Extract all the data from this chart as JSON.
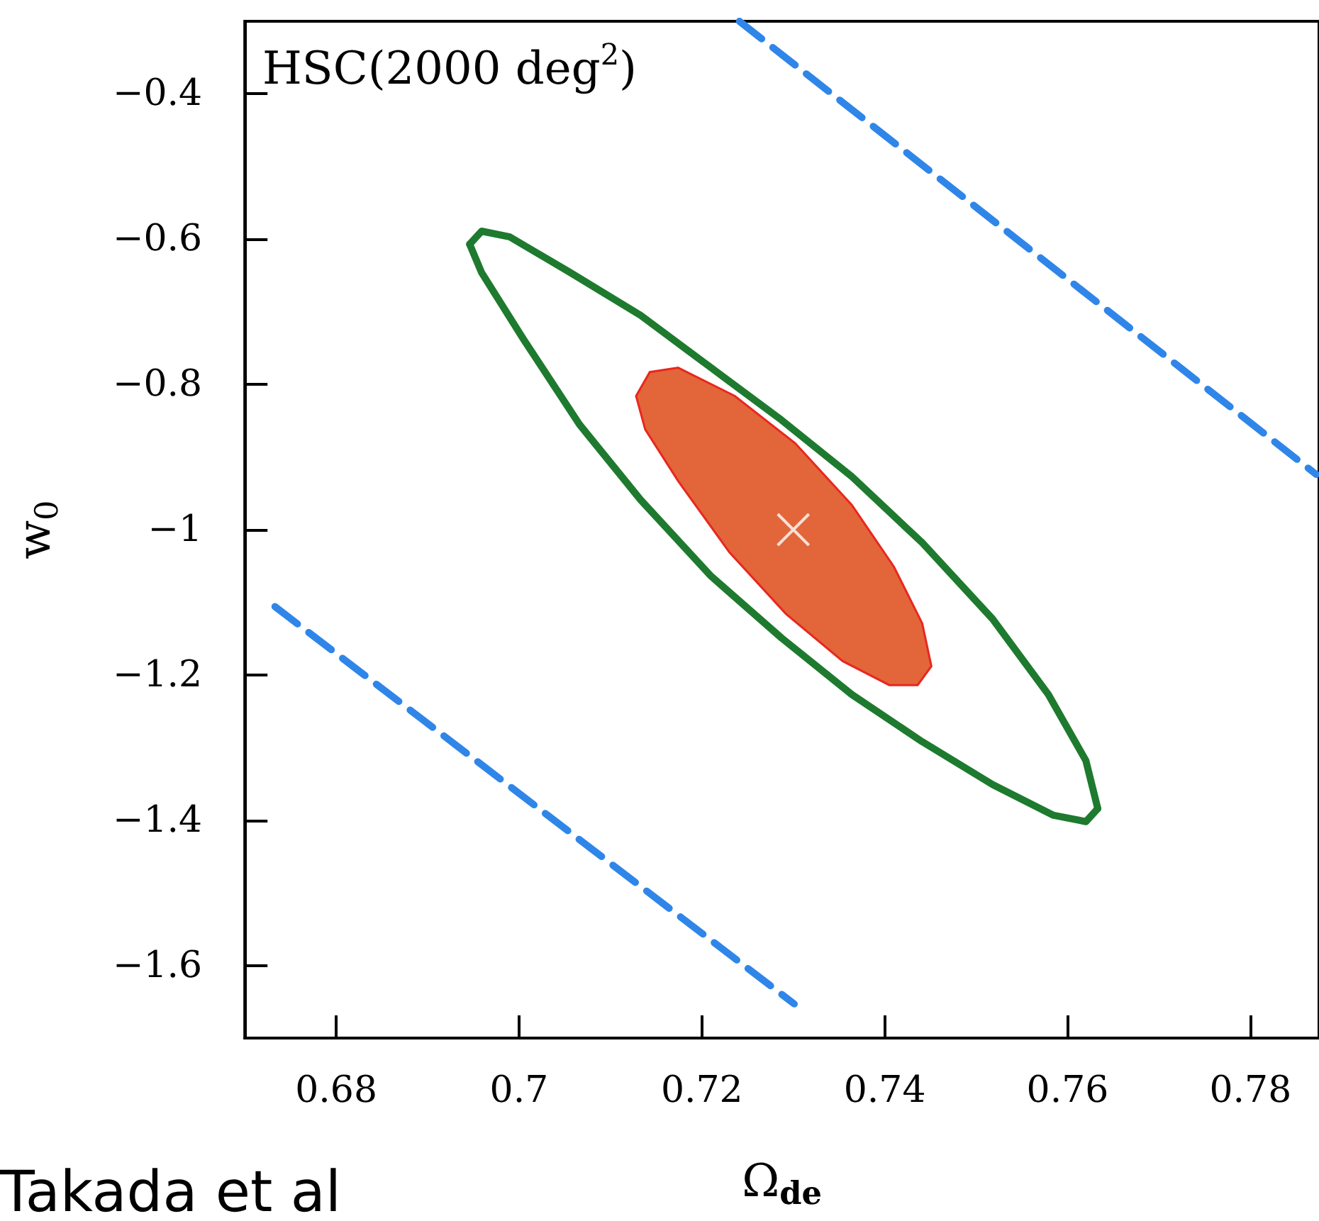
{
  "chart_data": {
    "type": "line",
    "xlabel": "Ω$_{de}$",
    "ylabel": "w$_{0}$",
    "xlim": [
      0.67,
      0.7875
    ],
    "ylim": [
      -1.7,
      -0.3
    ],
    "xticks": [
      0.68,
      0.7,
      0.72,
      0.74,
      0.76,
      0.78
    ],
    "yticks": [
      -1.6,
      -1.4,
      -1.2,
      -1,
      -0.8,
      -0.6,
      -0.4
    ],
    "grid": false,
    "annotations": [
      "HSC(2000 deg$^{2}$)",
      "Takada et al"
    ],
    "series": [
      {
        "color": "#2f86e8",
        "line_style": "dashed",
        "marker": "none",
        "x": [
          0.7241,
          0.7872
        ],
        "values": [
          -0.3,
          -0.924
        ]
      },
      {
        "color": "#2f86e8",
        "line_style": "dashed",
        "marker": "none",
        "x": [
          0.6733,
          0.7301
        ],
        "values": [
          -1.106,
          -1.653
        ]
      },
      {
        "color": "#1e7a2e",
        "line_style": "solid",
        "marker": "none",
        "x": [
          0.6946,
          0.6959,
          0.699,
          0.7056,
          0.7133,
          0.721,
          0.7287,
          0.7364,
          0.7441,
          0.7518,
          0.7579,
          0.762,
          0.7633
        ],
        "values": [
          -0.607,
          -0.589,
          -0.597,
          -0.646,
          -0.705,
          -0.777,
          -0.849,
          -0.927,
          -1.018,
          -1.123,
          -1.227,
          -1.318,
          -1.384
        ]
      },
      {
        "color": "#1e7a2e",
        "line_style": "solid",
        "marker": "none",
        "x": [
          0.7633,
          0.762,
          0.7584,
          0.7518,
          0.7441,
          0.7364,
          0.7287,
          0.721,
          0.7133,
          0.7066,
          0.7005,
          0.6959,
          0.6946
        ],
        "values": [
          -1.384,
          -1.402,
          -1.393,
          -1.351,
          -1.292,
          -1.227,
          -1.149,
          -1.064,
          -0.959,
          -0.855,
          -0.738,
          -0.646,
          -0.607
        ]
      },
      {
        "type": "area",
        "color": "#e2663a",
        "x": [
          0.7128,
          0.7143,
          0.7174,
          0.7236,
          0.7302,
          0.7364,
          0.741,
          0.7441,
          0.7451,
          0.7436,
          0.7405,
          0.7354,
          0.7292,
          0.723,
          0.7174,
          0.7138
        ],
        "values": [
          -0.816,
          -0.783,
          -0.777,
          -0.816,
          -0.881,
          -0.966,
          -1.051,
          -1.129,
          -1.188,
          -1.214,
          -1.214,
          -1.181,
          -1.116,
          -1.031,
          -0.933,
          -0.862
        ]
      },
      {
        "type": "scatter",
        "color": "#ffffff",
        "marker": "cross",
        "x": [
          0.73
        ],
        "values": [
          -1
        ]
      }
    ]
  }
}
